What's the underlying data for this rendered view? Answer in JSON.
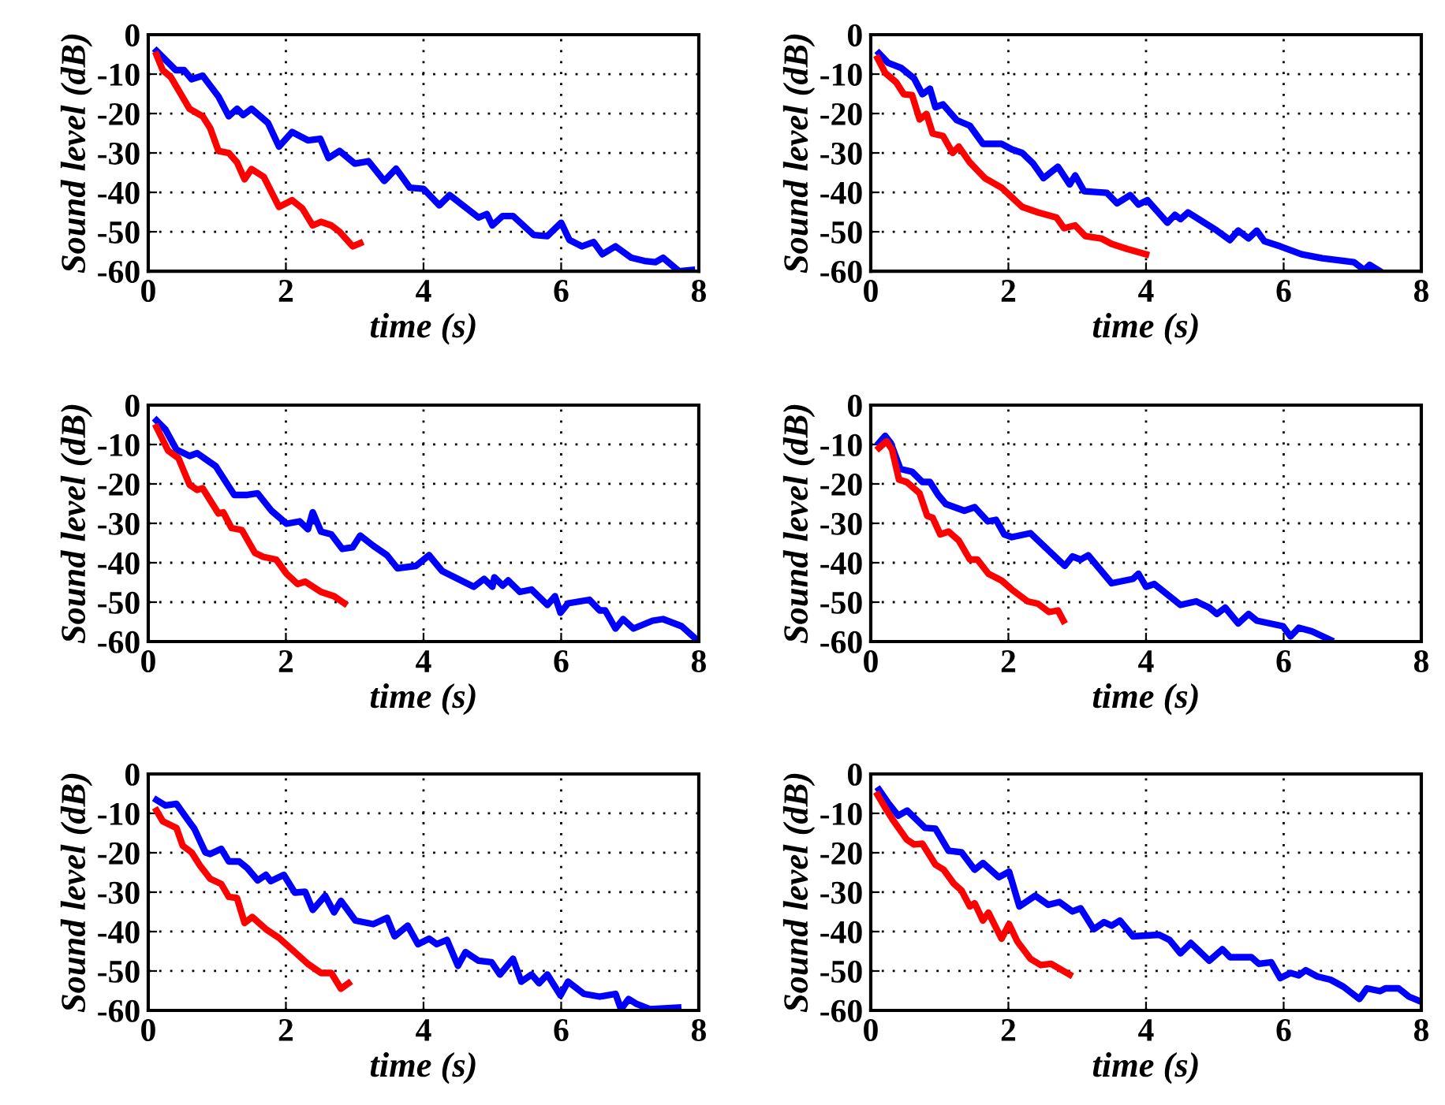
{
  "chart_data": [
    {
      "type": "line",
      "xlabel": "time (s)",
      "ylabel": "Sound level (dB)",
      "xlim": [
        0,
        8
      ],
      "ylim": [
        -60,
        0
      ],
      "xticks": [
        0,
        2,
        4,
        6,
        8
      ],
      "yticks": [
        -60,
        -50,
        -40,
        -30,
        -20,
        -10,
        0
      ],
      "grid": true,
      "series": [
        {
          "color": "#0000ff",
          "x": [
            0.12,
            0.4,
            0.52,
            0.63,
            0.79,
            1.02,
            1.17,
            1.29,
            1.38,
            1.5,
            1.74,
            1.9,
            2.09,
            2.32,
            2.5,
            2.62,
            2.78,
            3.0,
            3.2,
            3.43,
            3.6,
            3.8,
            4.0,
            4.23,
            4.38,
            4.8,
            4.92,
            5.0,
            5.15,
            5.3,
            5.6,
            5.8,
            6.0,
            6.12,
            6.3,
            6.47,
            6.6,
            6.79,
            7.02,
            7.21,
            7.37,
            7.48,
            7.71,
            7.9
          ],
          "values": [
            -4.1,
            -9,
            -9,
            -11.3,
            -10.4,
            -15.7,
            -20.7,
            -18.8,
            -20.4,
            -18.8,
            -22.4,
            -28.4,
            -24.7,
            -26.8,
            -26.4,
            -31.3,
            -29.5,
            -32.7,
            -32.1,
            -37.1,
            -34,
            -38.8,
            -39.1,
            -43.3,
            -40.7,
            -46.4,
            -45.5,
            -48.4,
            -46,
            -46,
            -50.8,
            -51.1,
            -47.7,
            -52.1,
            -53.7,
            -52.6,
            -55.7,
            -53.7,
            -56.6,
            -57.4,
            -57.7,
            -56.6,
            -60,
            -59.7
          ]
        },
        {
          "color": "#ff0000",
          "x": [
            0.12,
            0.21,
            0.33,
            0.6,
            0.79,
            0.9,
            1.02,
            1.17,
            1.29,
            1.4,
            1.5,
            1.68,
            1.9,
            2.09,
            2.24,
            2.39,
            2.51,
            2.66,
            2.78,
            2.97,
            3.08
          ],
          "values": [
            -5.1,
            -9,
            -10.8,
            -18.8,
            -20.7,
            -23.7,
            -29.5,
            -30,
            -32.4,
            -36.7,
            -34.1,
            -36.1,
            -43.7,
            -42,
            -44.1,
            -48.4,
            -47.5,
            -48.4,
            -50,
            -53.7,
            -52.9
          ]
        }
      ]
    },
    {
      "type": "line",
      "xlabel": "time (s)",
      "ylabel": "Sound level (dB)",
      "xlim": [
        0,
        8
      ],
      "ylim": [
        -60,
        0
      ],
      "xticks": [
        0,
        2,
        4,
        6,
        8
      ],
      "yticks": [
        -60,
        -50,
        -40,
        -30,
        -20,
        -10,
        0
      ],
      "grid": true,
      "series": [
        {
          "color": "#0000ff",
          "x": [
            0.12,
            0.25,
            0.44,
            0.63,
            0.75,
            0.86,
            0.94,
            1.05,
            1.25,
            1.44,
            1.63,
            1.9,
            2.05,
            2.2,
            2.36,
            2.51,
            2.72,
            2.89,
            2.97,
            3.1,
            3.43,
            3.58,
            3.77,
            3.89,
            4.02,
            4.31,
            4.42,
            4.5,
            4.61,
            5.03,
            5.22,
            5.34,
            5.49,
            5.61,
            5.72,
            5.95,
            6.26,
            6.56,
            7.02,
            7.17,
            7.25,
            7.4
          ],
          "values": [
            -4.7,
            -7.1,
            -8.4,
            -11.1,
            -15.1,
            -13.7,
            -18.4,
            -17.7,
            -21.7,
            -23.1,
            -27.7,
            -27.7,
            -29.1,
            -30,
            -32.7,
            -36.4,
            -33.5,
            -38,
            -35.7,
            -39.7,
            -40.1,
            -42.8,
            -40.7,
            -43.1,
            -42,
            -47.7,
            -45.7,
            -46.8,
            -45.1,
            -49.7,
            -52.1,
            -49.7,
            -51.7,
            -49.7,
            -52.4,
            -53.7,
            -55.7,
            -56.7,
            -57.7,
            -59.7,
            -58.4,
            -60
          ]
        },
        {
          "color": "#ff0000",
          "x": [
            0.1,
            0.21,
            0.37,
            0.48,
            0.6,
            0.71,
            0.81,
            0.9,
            1.05,
            1.19,
            1.28,
            1.44,
            1.66,
            1.9,
            2.2,
            2.43,
            2.7,
            2.81,
            2.97,
            3.12,
            3.35,
            3.5,
            3.73,
            4.0
          ],
          "values": [
            -6,
            -9.7,
            -12.1,
            -15.1,
            -15.3,
            -21.5,
            -20.1,
            -25.1,
            -25.7,
            -30,
            -28.4,
            -32.4,
            -36.4,
            -38.8,
            -43.7,
            -45.1,
            -46.4,
            -49.1,
            -48.4,
            -51.1,
            -51.7,
            -53.1,
            -54.4,
            -55.7
          ]
        }
      ]
    },
    {
      "type": "line",
      "xlabel": "time (s)",
      "ylabel": "Sound level (dB)",
      "xlim": [
        0,
        8
      ],
      "ylim": [
        -60,
        0
      ],
      "xticks": [
        0,
        2,
        4,
        6,
        8
      ],
      "yticks": [
        -60,
        -50,
        -40,
        -30,
        -20,
        -10,
        0
      ],
      "grid": true,
      "series": [
        {
          "color": "#0000ff",
          "x": [
            0.12,
            0.25,
            0.41,
            0.6,
            0.71,
            0.98,
            1.25,
            1.44,
            1.59,
            1.79,
            2.01,
            2.2,
            2.32,
            2.39,
            2.51,
            2.66,
            2.82,
            2.97,
            3.08,
            3.27,
            3.47,
            3.62,
            3.89,
            4.08,
            4.27,
            4.73,
            4.88,
            5.0,
            5.03,
            5.15,
            5.23,
            5.4,
            5.57,
            5.8,
            5.91,
            5.99,
            6.1,
            6.41,
            6.56,
            6.64,
            6.79,
            6.9,
            7.05,
            7.33,
            7.48,
            7.75,
            7.98
          ],
          "values": [
            -3.9,
            -6.2,
            -11.3,
            -12.9,
            -12.2,
            -15.5,
            -22.8,
            -22.8,
            -22.4,
            -26.8,
            -30.1,
            -29.5,
            -31.5,
            -27.2,
            -32.1,
            -32.8,
            -36.5,
            -36.1,
            -33.1,
            -35.7,
            -38.1,
            -41.4,
            -40.8,
            -38.1,
            -42.1,
            -46.1,
            -44.1,
            -46.1,
            -43.7,
            -45.8,
            -44.5,
            -47.4,
            -46.8,
            -50.7,
            -48.5,
            -52.7,
            -50.3,
            -49.4,
            -52.1,
            -52.1,
            -56.7,
            -54.3,
            -56.7,
            -54.7,
            -54.3,
            -56.1,
            -59.7
          ]
        },
        {
          "color": "#ff0000",
          "x": [
            0.12,
            0.29,
            0.44,
            0.6,
            0.71,
            0.79,
            1.02,
            1.09,
            1.21,
            1.36,
            1.55,
            1.67,
            1.86,
            2.01,
            2.17,
            2.28,
            2.51,
            2.7,
            2.85
          ],
          "values": [
            -5.6,
            -11.6,
            -13.5,
            -20.2,
            -21.5,
            -21.1,
            -27.5,
            -27.2,
            -31.2,
            -31.7,
            -37.5,
            -38.5,
            -39.2,
            -42.8,
            -45.4,
            -44.8,
            -47.4,
            -48.5,
            -50.3
          ]
        }
      ]
    },
    {
      "type": "line",
      "xlabel": "time (s)",
      "ylabel": "Sound level (dB)",
      "xlim": [
        0,
        8
      ],
      "ylim": [
        -60,
        0
      ],
      "xticks": [
        0,
        2,
        4,
        6,
        8
      ],
      "yticks": [
        -60,
        -50,
        -40,
        -30,
        -20,
        -10,
        0
      ],
      "grid": true,
      "series": [
        {
          "color": "#0000ff",
          "x": [
            0.12,
            0.21,
            0.29,
            0.43,
            0.6,
            0.75,
            0.86,
            0.98,
            1.09,
            1.36,
            1.51,
            1.7,
            1.82,
            1.94,
            2.05,
            2.32,
            2.82,
            2.93,
            3.05,
            3.16,
            3.5,
            3.81,
            3.89,
            4.0,
            4.12,
            4.5,
            4.73,
            4.92,
            5.03,
            5.15,
            5.34,
            5.49,
            5.61,
            5.99,
            6.1,
            6.22,
            6.41,
            6.68
          ],
          "values": [
            -9.6,
            -7.8,
            -9.6,
            -16.2,
            -16.9,
            -19.5,
            -19.5,
            -22.8,
            -25.1,
            -26.8,
            -25.9,
            -29.5,
            -29.1,
            -32.8,
            -33.5,
            -32.5,
            -40.8,
            -38.4,
            -39.2,
            -38.1,
            -45.2,
            -44.1,
            -42.8,
            -46.1,
            -45.4,
            -50.7,
            -49.8,
            -51.4,
            -53,
            -51.4,
            -55.4,
            -53,
            -54.7,
            -56.1,
            -58.7,
            -56.5,
            -57.4,
            -59.6
          ]
        },
        {
          "color": "#ff0000",
          "x": [
            0.12,
            0.23,
            0.31,
            0.41,
            0.52,
            0.71,
            0.82,
            0.9,
            1.01,
            1.13,
            1.28,
            1.44,
            1.55,
            1.71,
            1.9,
            2.05,
            2.28,
            2.43,
            2.59,
            2.72,
            2.8
          ],
          "values": [
            -10.9,
            -9.2,
            -11.3,
            -18.9,
            -19.5,
            -22.4,
            -28.1,
            -28.6,
            -32.8,
            -32.1,
            -34.4,
            -39.2,
            -39.2,
            -42.8,
            -44.5,
            -46.8,
            -49.8,
            -50.4,
            -52.5,
            -52.1,
            -54.7
          ]
        }
      ]
    },
    {
      "type": "line",
      "xlabel": "time (s)",
      "ylabel": "Sound level (dB)",
      "xlim": [
        0,
        8
      ],
      "ylim": [
        -60,
        0
      ],
      "xticks": [
        0,
        2,
        4,
        6,
        8
      ],
      "yticks": [
        -60,
        -50,
        -40,
        -30,
        -20,
        -10,
        0
      ],
      "grid": true,
      "series": [
        {
          "color": "#0000ff",
          "x": [
            0.12,
            0.25,
            0.41,
            0.56,
            0.67,
            0.83,
            0.9,
            1.06,
            1.17,
            1.32,
            1.44,
            1.59,
            1.71,
            1.78,
            1.97,
            2.13,
            2.28,
            2.39,
            2.57,
            2.7,
            2.8,
            3.01,
            3.27,
            3.47,
            3.58,
            3.77,
            3.92,
            4.08,
            4.19,
            4.34,
            4.5,
            4.61,
            4.8,
            4.99,
            5.11,
            5.3,
            5.42,
            5.57,
            5.68,
            5.8,
            5.99,
            6.1,
            6.33,
            6.56,
            6.79,
            6.87,
            6.98,
            7.1,
            7.29,
            7.7
          ],
          "values": [
            -6.6,
            -8,
            -7.6,
            -11.3,
            -13.9,
            -19.9,
            -20.3,
            -19,
            -22.2,
            -22.2,
            -23.9,
            -27,
            -25.6,
            -27.2,
            -25.6,
            -30.1,
            -29.9,
            -34.5,
            -30.9,
            -35.1,
            -32.2,
            -37.2,
            -38.1,
            -36.5,
            -41.2,
            -38.5,
            -43.2,
            -41.8,
            -43.2,
            -42.1,
            -48.7,
            -45.2,
            -47.4,
            -47.8,
            -50.9,
            -46.9,
            -52.7,
            -50.9,
            -53.1,
            -50.9,
            -56.2,
            -52.7,
            -55.8,
            -56.5,
            -55.8,
            -59.7,
            -57.1,
            -58.4,
            -59.7,
            -59.3
          ]
        },
        {
          "color": "#ff0000",
          "x": [
            0.12,
            0.21,
            0.41,
            0.5,
            0.63,
            0.75,
            0.9,
            1.06,
            1.17,
            1.29,
            1.4,
            1.51,
            1.71,
            1.9,
            2.13,
            2.32,
            2.51,
            2.66,
            2.8,
            2.91
          ],
          "values": [
            -9.3,
            -12,
            -13.7,
            -18.2,
            -19.9,
            -23.2,
            -26.6,
            -27.9,
            -31.2,
            -31.5,
            -37.8,
            -36.3,
            -39.4,
            -41.6,
            -45.2,
            -48.2,
            -50.5,
            -50.5,
            -54.5,
            -53.1
          ]
        }
      ]
    },
    {
      "type": "line",
      "xlabel": "time (s)",
      "ylabel": "Sound level (dB)",
      "xlim": [
        0,
        8
      ],
      "ylim": [
        -60,
        0
      ],
      "xticks": [
        0,
        2,
        4,
        6,
        8
      ],
      "yticks": [
        -60,
        -50,
        -40,
        -30,
        -20,
        -10,
        0
      ],
      "grid": true,
      "series": [
        {
          "color": "#0000ff",
          "x": [
            0.12,
            0.25,
            0.4,
            0.53,
            0.79,
            0.94,
            1.13,
            1.32,
            1.51,
            1.63,
            1.86,
            2.01,
            2.16,
            2.39,
            2.58,
            2.74,
            2.93,
            3.05,
            3.24,
            3.39,
            3.5,
            3.62,
            3.81,
            4.19,
            4.34,
            4.5,
            4.65,
            4.92,
            5.11,
            5.22,
            5.53,
            5.64,
            5.82,
            5.95,
            6.1,
            6.22,
            6.32,
            6.49,
            6.68,
            6.87,
            7.1,
            7.21,
            7.4,
            7.48,
            7.67,
            7.82,
            8.0
          ],
          "values": [
            -4,
            -7.3,
            -10.6,
            -9.3,
            -13.7,
            -13.9,
            -19.5,
            -19.9,
            -24.3,
            -22.6,
            -26.2,
            -24.8,
            -33.6,
            -30.9,
            -33.2,
            -32.5,
            -34.9,
            -34.1,
            -39.4,
            -37.6,
            -38.5,
            -37.2,
            -41.2,
            -40.8,
            -42.1,
            -45.5,
            -42.9,
            -47.4,
            -44.5,
            -46.5,
            -46.5,
            -48.2,
            -47.8,
            -51.8,
            -50.5,
            -51.1,
            -49.8,
            -51.4,
            -52.2,
            -54,
            -57.1,
            -54.4,
            -55.1,
            -54.4,
            -54.4,
            -56.5,
            -57.8
          ]
        },
        {
          "color": "#ff0000",
          "x": [
            0.1,
            0.21,
            0.33,
            0.52,
            0.63,
            0.75,
            0.94,
            1.06,
            1.21,
            1.32,
            1.44,
            1.51,
            1.63,
            1.71,
            1.9,
            2.01,
            2.13,
            2.32,
            2.47,
            2.62,
            2.89
          ],
          "values": [
            -5.3,
            -8.6,
            -11.9,
            -16.6,
            -17.9,
            -17.7,
            -23,
            -24.3,
            -27.9,
            -29.6,
            -33.6,
            -32.8,
            -37.2,
            -35.2,
            -41.8,
            -38.1,
            -42.5,
            -46.9,
            -48.5,
            -48.2,
            -50.9
          ]
        }
      ]
    }
  ]
}
